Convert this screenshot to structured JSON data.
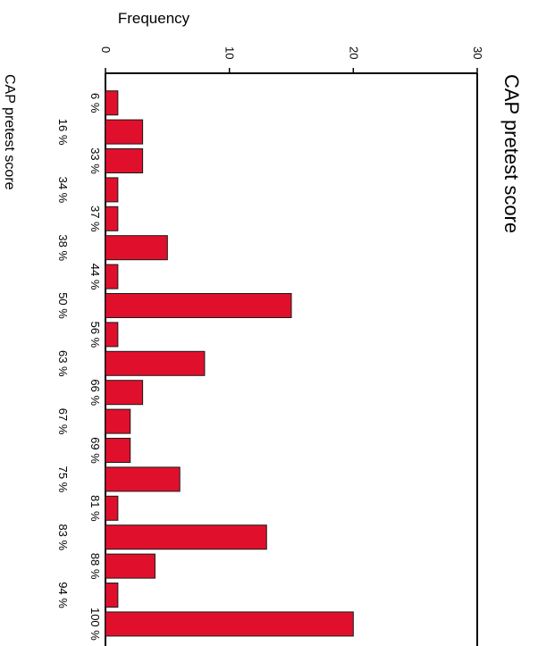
{
  "chart_data": {
    "type": "bar",
    "orientation": "horizontal-rotated",
    "title": "CAP pretest score",
    "xlabel": "CAP pretest score",
    "ylabel": "Frequency",
    "categories": [
      "6 %",
      "16 %",
      "33 %",
      "34 %",
      "37 %",
      "38 %",
      "44 %",
      "50 %",
      "56 %",
      "63 %",
      "66 %",
      "67 %",
      "69 %",
      "75 %",
      "81 %",
      "83 %",
      "88 %",
      "94 %",
      "100 %"
    ],
    "values": [
      1,
      3,
      3,
      1,
      1,
      5,
      1,
      15,
      1,
      8,
      3,
      2,
      2,
      6,
      1,
      13,
      4,
      1,
      20
    ],
    "ylim": [
      0,
      30
    ],
    "yticks": [
      "0",
      "10",
      "20",
      "30"
    ],
    "grid": false,
    "colors": {
      "bar_fill": "#e0102c",
      "bar_stroke": "#1a1a1a",
      "axis": "#000000",
      "background": "#ffffff"
    }
  }
}
